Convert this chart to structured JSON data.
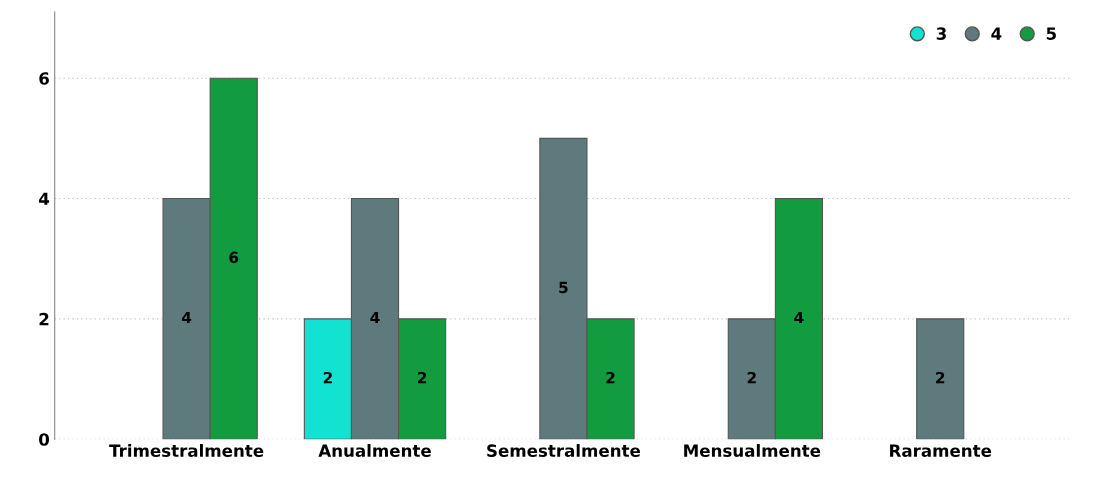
{
  "chart_data": {
    "type": "bar",
    "categories": [
      "Trimestralmente",
      "Anualmente",
      "Semestralmente",
      "Mensualmente",
      "Raramente"
    ],
    "series": [
      {
        "name": "3",
        "color": "#12e2d2",
        "values": [
          null,
          2,
          null,
          null,
          null
        ]
      },
      {
        "name": "4",
        "color": "#5f7a7c",
        "values": [
          4,
          4,
          5,
          2,
          2
        ]
      },
      {
        "name": "5",
        "color": "#129c3f",
        "values": [
          6,
          2,
          2,
          4,
          null
        ]
      }
    ],
    "ylim": [
      0,
      7.1
    ],
    "yticks": [
      0,
      2,
      4,
      6
    ],
    "grid": "y",
    "legend": "top right",
    "data_labels": true
  }
}
